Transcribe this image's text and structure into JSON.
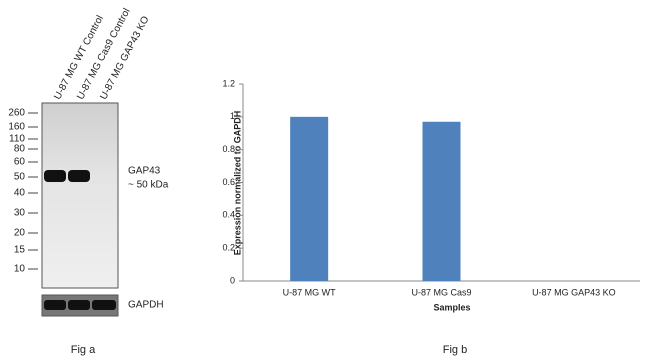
{
  "figure_a": {
    "lanes": [
      "U-87 MG WT Control",
      "U-87 MG Cas9 Control",
      "U-87 MG GAP43 KO"
    ],
    "markers": [
      260,
      160,
      110,
      80,
      60,
      50,
      40,
      30,
      20,
      15,
      10
    ],
    "band_label": "GAP43",
    "band_size": "~ 50 kDa",
    "loading_control": "GAPDH",
    "caption": "Fig a"
  },
  "chart_data": {
    "type": "bar",
    "caption": "Fig b",
    "categories": [
      "U-87 MG WT",
      "U-87 MG Cas9",
      "U-87 MG GAP43 KO"
    ],
    "values": [
      1,
      0.97,
      0
    ],
    "color": "#4f81bd",
    "ylim": [
      0,
      1.2
    ],
    "yticks": [
      0,
      0.2,
      0.4,
      0.6,
      0.8,
      1,
      1.2
    ],
    "y_label": "Expression  normalized to GAPDH",
    "x_label": "Samples",
    "grid": false
  }
}
